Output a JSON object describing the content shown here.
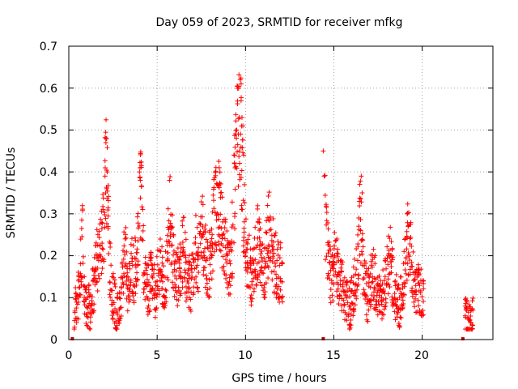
{
  "chart_data": {
    "type": "scatter",
    "title": "Day 059 of 2023, SRMTID for receiver mfkg",
    "xlabel": "GPS time / hours",
    "ylabel": "SRMTID / TECUs",
    "xlim": [
      0,
      24
    ],
    "ylim": [
      0,
      0.7
    ],
    "xticks": [
      "0",
      "5",
      "10",
      "15",
      "20"
    ],
    "yticks": [
      "0",
      "0.1",
      "0.2",
      "0.3",
      "0.4",
      "0.5",
      "0.6",
      "0.7"
    ],
    "grid": true,
    "marker": "+",
    "color": "#ff0000",
    "gap_markers_x": [
      0.2,
      14.4,
      22.3
    ],
    "anchor_points": [
      [
        0.3,
        0.05
      ],
      [
        0.4,
        0.08
      ],
      [
        0.5,
        0.1
      ],
      [
        0.6,
        0.12
      ],
      [
        0.7,
        0.2
      ],
      [
        0.8,
        0.25
      ],
      [
        0.9,
        0.08
      ],
      [
        1.0,
        0.07
      ],
      [
        1.1,
        0.09
      ],
      [
        1.2,
        0.06
      ],
      [
        1.3,
        0.1
      ],
      [
        1.4,
        0.12
      ],
      [
        1.5,
        0.15
      ],
      [
        1.6,
        0.2
      ],
      [
        1.7,
        0.18
      ],
      [
        1.8,
        0.22
      ],
      [
        1.9,
        0.25
      ],
      [
        2.0,
        0.3
      ],
      [
        2.1,
        0.42
      ],
      [
        2.2,
        0.35
      ],
      [
        2.3,
        0.18
      ],
      [
        2.4,
        0.14
      ],
      [
        2.5,
        0.1
      ],
      [
        2.6,
        0.09
      ],
      [
        2.7,
        0.07
      ],
      [
        2.8,
        0.06
      ],
      [
        2.9,
        0.08
      ],
      [
        3.0,
        0.12
      ],
      [
        3.1,
        0.2
      ],
      [
        3.2,
        0.25
      ],
      [
        3.3,
        0.12
      ],
      [
        3.4,
        0.14
      ],
      [
        3.5,
        0.16
      ],
      [
        3.6,
        0.17
      ],
      [
        3.7,
        0.16
      ],
      [
        3.8,
        0.18
      ],
      [
        3.9,
        0.22
      ],
      [
        4.0,
        0.3
      ],
      [
        4.1,
        0.35
      ],
      [
        4.2,
        0.22
      ],
      [
        4.3,
        0.15
      ],
      [
        4.4,
        0.14
      ],
      [
        4.5,
        0.12
      ],
      [
        4.6,
        0.13
      ],
      [
        4.7,
        0.15
      ],
      [
        4.8,
        0.12
      ],
      [
        4.9,
        0.11
      ],
      [
        5.0,
        0.14
      ],
      [
        5.1,
        0.16
      ],
      [
        5.2,
        0.18
      ],
      [
        5.3,
        0.14
      ],
      [
        5.4,
        0.12
      ],
      [
        5.5,
        0.16
      ],
      [
        5.6,
        0.2
      ],
      [
        5.7,
        0.3
      ],
      [
        5.8,
        0.25
      ],
      [
        5.9,
        0.18
      ],
      [
        6.0,
        0.15
      ],
      [
        6.1,
        0.14
      ],
      [
        6.2,
        0.16
      ],
      [
        6.3,
        0.18
      ],
      [
        6.4,
        0.2
      ],
      [
        6.5,
        0.22
      ],
      [
        6.6,
        0.18
      ],
      [
        6.7,
        0.15
      ],
      [
        6.8,
        0.14
      ],
      [
        6.9,
        0.12
      ],
      [
        7.0,
        0.16
      ],
      [
        7.1,
        0.2
      ],
      [
        7.2,
        0.22
      ],
      [
        7.3,
        0.18
      ],
      [
        7.4,
        0.2
      ],
      [
        7.5,
        0.24
      ],
      [
        7.6,
        0.25
      ],
      [
        7.7,
        0.2
      ],
      [
        7.8,
        0.18
      ],
      [
        7.9,
        0.16
      ],
      [
        8.0,
        0.2
      ],
      [
        8.1,
        0.22
      ],
      [
        8.2,
        0.28
      ],
      [
        8.3,
        0.3
      ],
      [
        8.4,
        0.34
      ],
      [
        8.5,
        0.32
      ],
      [
        8.6,
        0.28
      ],
      [
        8.7,
        0.25
      ],
      [
        8.8,
        0.22
      ],
      [
        8.9,
        0.2
      ],
      [
        9.0,
        0.18
      ],
      [
        9.1,
        0.16
      ],
      [
        9.2,
        0.2
      ],
      [
        9.3,
        0.3
      ],
      [
        9.4,
        0.4
      ],
      [
        9.5,
        0.45
      ],
      [
        9.6,
        0.48
      ],
      [
        9.7,
        0.55
      ],
      [
        9.8,
        0.4
      ],
      [
        9.9,
        0.3
      ],
      [
        10.0,
        0.25
      ],
      [
        10.1,
        0.2
      ],
      [
        10.2,
        0.18
      ],
      [
        10.3,
        0.15
      ],
      [
        10.4,
        0.14
      ],
      [
        10.5,
        0.18
      ],
      [
        10.6,
        0.2
      ],
      [
        10.7,
        0.24
      ],
      [
        10.8,
        0.22
      ],
      [
        10.9,
        0.18
      ],
      [
        11.0,
        0.16
      ],
      [
        11.1,
        0.18
      ],
      [
        11.2,
        0.22
      ],
      [
        11.3,
        0.25
      ],
      [
        11.4,
        0.28
      ],
      [
        11.5,
        0.24
      ],
      [
        11.6,
        0.2
      ],
      [
        11.7,
        0.18
      ],
      [
        11.8,
        0.17
      ],
      [
        11.9,
        0.15
      ],
      [
        12.0,
        0.16
      ],
      [
        14.5,
        0.3
      ],
      [
        14.6,
        0.22
      ],
      [
        14.7,
        0.18
      ],
      [
        14.8,
        0.16
      ],
      [
        14.9,
        0.14
      ],
      [
        15.0,
        0.17
      ],
      [
        15.1,
        0.2
      ],
      [
        15.2,
        0.18
      ],
      [
        15.3,
        0.15
      ],
      [
        15.4,
        0.13
      ],
      [
        15.5,
        0.12
      ],
      [
        15.6,
        0.1
      ],
      [
        15.7,
        0.09
      ],
      [
        15.8,
        0.08
      ],
      [
        15.9,
        0.07
      ],
      [
        16.0,
        0.1
      ],
      [
        16.1,
        0.12
      ],
      [
        16.2,
        0.15
      ],
      [
        16.3,
        0.18
      ],
      [
        16.4,
        0.22
      ],
      [
        16.5,
        0.3
      ],
      [
        16.6,
        0.2
      ],
      [
        16.7,
        0.15
      ],
      [
        16.8,
        0.12
      ],
      [
        16.9,
        0.1
      ],
      [
        17.0,
        0.12
      ],
      [
        17.1,
        0.14
      ],
      [
        17.2,
        0.16
      ],
      [
        17.3,
        0.14
      ],
      [
        17.4,
        0.12
      ],
      [
        17.5,
        0.1
      ],
      [
        17.6,
        0.09
      ],
      [
        17.7,
        0.1
      ],
      [
        17.8,
        0.12
      ],
      [
        17.9,
        0.14
      ],
      [
        18.0,
        0.16
      ],
      [
        18.1,
        0.18
      ],
      [
        18.2,
        0.2
      ],
      [
        18.3,
        0.16
      ],
      [
        18.4,
        0.12
      ],
      [
        18.5,
        0.1
      ],
      [
        18.6,
        0.09
      ],
      [
        18.7,
        0.08
      ],
      [
        18.8,
        0.1
      ],
      [
        18.9,
        0.12
      ],
      [
        19.0,
        0.16
      ],
      [
        19.1,
        0.2
      ],
      [
        19.2,
        0.25
      ],
      [
        19.3,
        0.22
      ],
      [
        19.4,
        0.18
      ],
      [
        19.5,
        0.16
      ],
      [
        19.6,
        0.14
      ],
      [
        19.7,
        0.12
      ],
      [
        19.8,
        0.12
      ],
      [
        19.9,
        0.11
      ],
      [
        20.0,
        0.1
      ],
      [
        22.4,
        0.05
      ],
      [
        22.5,
        0.06
      ],
      [
        22.6,
        0.05
      ],
      [
        22.7,
        0.04
      ],
      [
        22.8,
        0.06
      ]
    ],
    "peak_points": [
      [
        2.1,
        0.48
      ],
      [
        2.1,
        0.47
      ],
      [
        2.05,
        0.39
      ],
      [
        2.15,
        0.36
      ],
      [
        4.0,
        0.4
      ],
      [
        4.05,
        0.38
      ],
      [
        5.7,
        0.38
      ],
      [
        8.4,
        0.37
      ],
      [
        8.6,
        0.35
      ],
      [
        9.5,
        0.5
      ],
      [
        9.6,
        0.49
      ],
      [
        9.65,
        0.45
      ],
      [
        9.7,
        0.62
      ],
      [
        9.75,
        0.61
      ],
      [
        9.75,
        0.57
      ],
      [
        9.8,
        0.53
      ],
      [
        9.85,
        0.51
      ],
      [
        9.9,
        0.44
      ],
      [
        14.4,
        0.45
      ],
      [
        14.45,
        0.39
      ],
      [
        16.55,
        0.39
      ],
      [
        16.6,
        0.35
      ],
      [
        19.15,
        0.3
      ],
      [
        19.2,
        0.27
      ]
    ]
  }
}
